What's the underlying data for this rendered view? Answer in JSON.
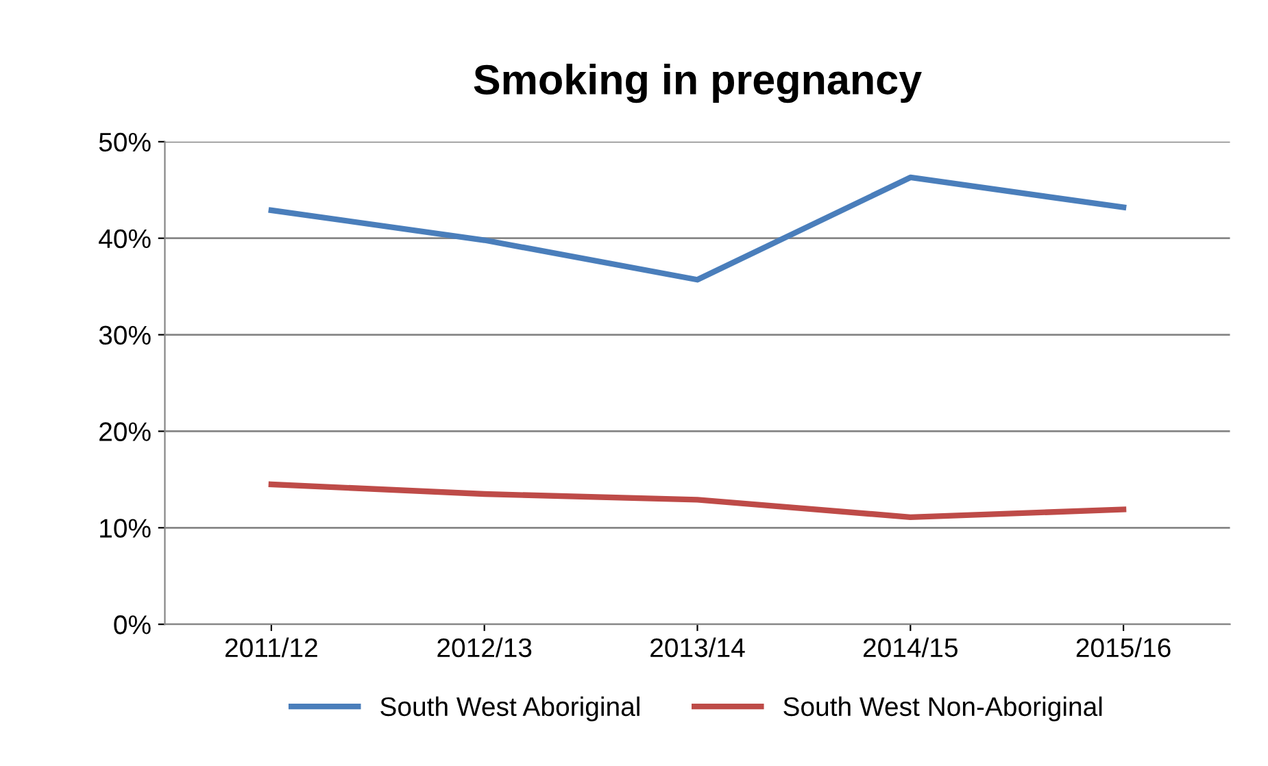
{
  "chart_data": {
    "type": "line",
    "title": "Smoking in pregnancy",
    "categories": [
      "2011/12",
      "2012/13",
      "2013/14",
      "2014/15",
      "2015/16"
    ],
    "series": [
      {
        "name": "South West Aboriginal",
        "color": "#4a7ebb",
        "values": [
          42.9,
          39.8,
          35.7,
          46.3,
          43.2
        ]
      },
      {
        "name": "South West Non-Aboriginal",
        "color": "#be4b48",
        "values": [
          14.5,
          13.5,
          12.9,
          11.1,
          11.9
        ]
      }
    ],
    "ylim": [
      0,
      50
    ],
    "yticks": [
      {
        "value": 0,
        "label": "0%"
      },
      {
        "value": 10,
        "label": "10%"
      },
      {
        "value": 20,
        "label": "20%"
      },
      {
        "value": 30,
        "label": "30%"
      },
      {
        "value": 40,
        "label": "40%"
      },
      {
        "value": 50,
        "label": "50%"
      }
    ],
    "grid": "y",
    "legend": "bottom",
    "marker": "none",
    "line_style": "solid"
  }
}
